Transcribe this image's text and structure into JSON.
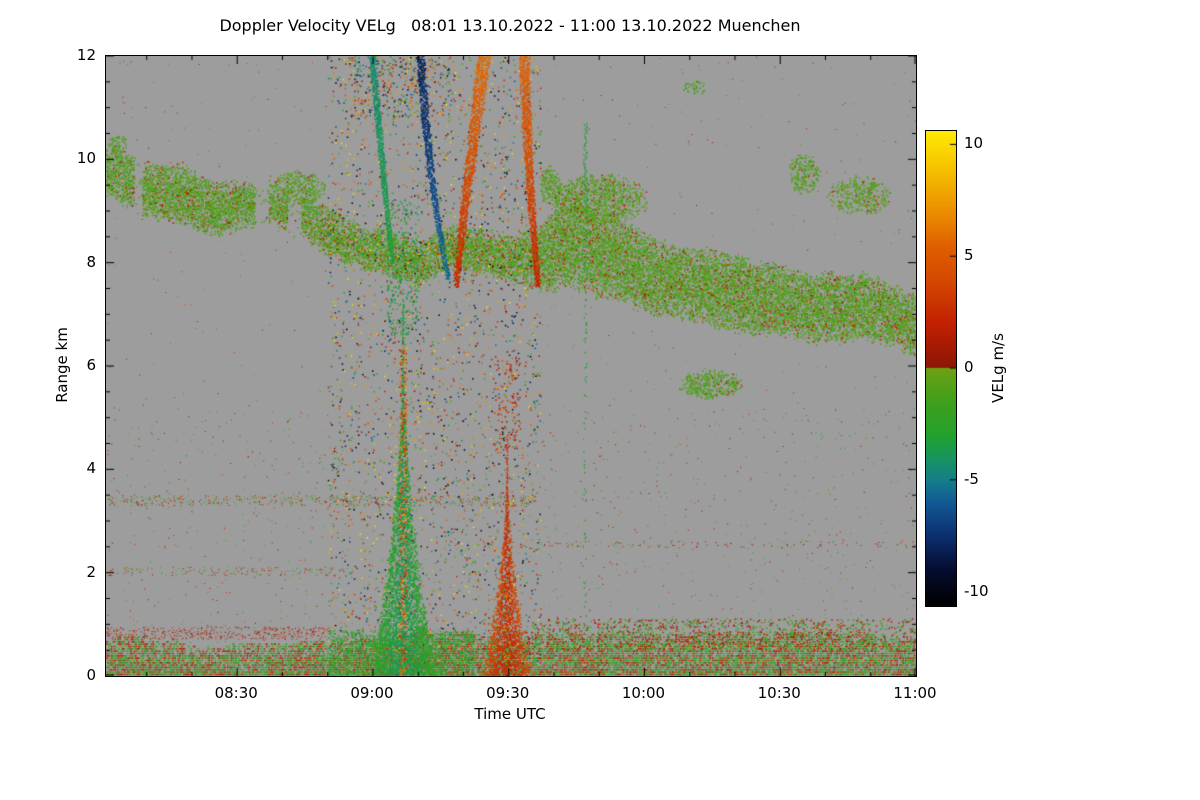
{
  "chart_data": {
    "type": "heatmap",
    "title": "Doppler Velocity VELg   08:01 13.10.2022 - 11:00 13.10.2022 Muenchen",
    "xlabel": "Time UTC",
    "ylabel": "Range km",
    "x_range": [
      1,
      180
    ],
    "x_minor": 10,
    "x_ticks": [
      {
        "t": 30,
        "label": "08:30"
      },
      {
        "t": 60,
        "label": "09:00"
      },
      {
        "t": 90,
        "label": "09:30"
      },
      {
        "t": 120,
        "label": "10:00"
      },
      {
        "t": 150,
        "label": "10:30"
      },
      {
        "t": 180,
        "label": "11:00"
      }
    ],
    "y_range": [
      0,
      12
    ],
    "y_minor": 0.5,
    "y_ticks": [
      0,
      2,
      4,
      6,
      8,
      10,
      12
    ],
    "background": "#9d9d9d",
    "colorbar": {
      "label": "VELg m/s",
      "range": [
        -10.6,
        10.6
      ],
      "ticks": [
        {
          "v": 10,
          "label": "10"
        },
        {
          "v": 5,
          "label": "5"
        },
        {
          "v": 0,
          "label": "0"
        },
        {
          "v": -5,
          "label": "-5"
        },
        {
          "v": -10,
          "label": "-10"
        }
      ],
      "stops": [
        [
          -10.6,
          "#000000"
        ],
        [
          -9.0,
          "#050d30"
        ],
        [
          -7.5,
          "#0b2f6e"
        ],
        [
          -6.0,
          "#125a96"
        ],
        [
          -5.0,
          "#157e8a"
        ],
        [
          -4.0,
          "#17955f"
        ],
        [
          -3.0,
          "#22a12e"
        ],
        [
          -1.5,
          "#3fa01c"
        ],
        [
          -0.3,
          "#63a014"
        ],
        [
          0.0,
          "#6fa012"
        ],
        [
          0.05,
          "#8c1606"
        ],
        [
          2.0,
          "#c22000"
        ],
        [
          4.0,
          "#d54a00"
        ],
        [
          5.5,
          "#e06000"
        ],
        [
          7.0,
          "#eb8e00"
        ],
        [
          9.0,
          "#f6c300"
        ],
        [
          10.6,
          "#ffea00"
        ]
      ]
    },
    "features": [
      {
        "kind": "speckle",
        "t0": 1,
        "t1": 180,
        "km0": 0,
        "km1": 5.2,
        "density": 0.006,
        "vmin": -4,
        "vmax": 4,
        "size": 1
      },
      {
        "kind": "speckle",
        "t0": 1,
        "t1": 180,
        "km0": 5.2,
        "km1": 12,
        "density": 0.0015,
        "vmin": -4,
        "vmax": 4,
        "size": 1
      },
      {
        "kind": "speckle",
        "t0": 1,
        "t1": 96,
        "km0": 3.3,
        "km1": 3.5,
        "density": 0.12,
        "vmin": -2.5,
        "vmax": 3,
        "size": 1
      },
      {
        "kind": "speckle",
        "t0": 1,
        "t1": 55,
        "km0": 1.95,
        "km1": 2.12,
        "density": 0.08,
        "vmin": -2.5,
        "vmax": 3,
        "size": 1
      },
      {
        "kind": "speckle",
        "t0": 96,
        "t1": 180,
        "km0": 2.5,
        "km1": 2.62,
        "density": 0.05,
        "vmin": -2,
        "vmax": 2.5,
        "size": 1
      },
      {
        "kind": "band",
        "points": [
          [
            1,
            9.8,
            0.5
          ],
          [
            10,
            9.5,
            0.55
          ],
          [
            18,
            9.3,
            0.6
          ],
          [
            26,
            9.05,
            0.55
          ],
          [
            33,
            8.9,
            0.45
          ],
          [
            38,
            8.85,
            0.3
          ],
          [
            44,
            8.75,
            0.45
          ],
          [
            50,
            8.6,
            0.5
          ],
          [
            56,
            8.45,
            0.42
          ],
          [
            62,
            8.3,
            0.45
          ],
          [
            68,
            8.18,
            0.45
          ],
          [
            74,
            8.1,
            0.42
          ],
          [
            80,
            8.02,
            0.48
          ],
          [
            86,
            7.95,
            0.45
          ],
          [
            92,
            7.9,
            0.5
          ],
          [
            97,
            7.95,
            0.65
          ],
          [
            101,
            8.3,
            0.95
          ],
          [
            106,
            8.25,
            0.9
          ],
          [
            112,
            8.1,
            0.82
          ],
          [
            118,
            7.98,
            0.8
          ],
          [
            124,
            7.88,
            0.75
          ],
          [
            130,
            7.78,
            0.72
          ],
          [
            136,
            7.7,
            0.78
          ],
          [
            142,
            7.58,
            0.78
          ],
          [
            148,
            7.47,
            0.72
          ],
          [
            154,
            7.38,
            0.7
          ],
          [
            160,
            7.3,
            0.7
          ],
          [
            166,
            7.18,
            0.68
          ],
          [
            172,
            7.1,
            0.64
          ],
          [
            180,
            6.95,
            0.6
          ]
        ],
        "v": -0.9,
        "jitter": 1.6,
        "pos_frac": 0.1,
        "density": 0.8,
        "gaps": [
          [
            7,
            9
          ],
          [
            34,
            37
          ],
          [
            41,
            44
          ]
        ]
      },
      {
        "kind": "patch",
        "t0": 36,
        "t1": 50,
        "km0": 9.1,
        "km1": 9.8,
        "density": 0.5,
        "v": -0.8,
        "jitter": 1.2,
        "pos_frac": 0.05
      },
      {
        "kind": "patch",
        "t0": 96,
        "t1": 102,
        "km0": 9.1,
        "km1": 9.9,
        "density": 0.5,
        "v": -0.9,
        "jitter": 1.2,
        "pos_frac": 0.05
      },
      {
        "kind": "patch",
        "t0": 99,
        "t1": 121,
        "km0": 8.7,
        "km1": 9.75,
        "density": 0.55,
        "v": -0.8,
        "jitter": 1.4,
        "pos_frac": 0.08
      },
      {
        "kind": "patch",
        "t0": 127,
        "t1": 142,
        "km0": 5.35,
        "km1": 5.95,
        "density": 0.55,
        "v": -1.0,
        "jitter": 1.0,
        "pos_frac": 0.04
      },
      {
        "kind": "patch",
        "t0": 151,
        "t1": 159,
        "km0": 9.3,
        "km1": 10.15,
        "density": 0.5,
        "v": -0.9,
        "jitter": 1.2,
        "pos_frac": 0.05
      },
      {
        "kind": "patch",
        "t0": 160,
        "t1": 175,
        "km0": 8.9,
        "km1": 9.7,
        "density": 0.45,
        "v": -0.8,
        "jitter": 1.3,
        "pos_frac": 0.07
      },
      {
        "kind": "patch",
        "t0": 128,
        "t1": 134,
        "km0": 11.25,
        "km1": 11.55,
        "density": 0.45,
        "v": -1.2,
        "jitter": 0.8,
        "pos_frac": 0
      },
      {
        "kind": "patch",
        "t0": 1,
        "t1": 6,
        "km0": 10.1,
        "km1": 10.5,
        "density": 0.4,
        "v": -1.0,
        "jitter": 1.0,
        "pos_frac": 0.05
      },
      {
        "kind": "speckle",
        "t0": 50,
        "t1": 97,
        "km0": 0,
        "km1": 12,
        "density": 0.05,
        "vmin": -10.6,
        "vmax": 10.6,
        "size": 1.5
      },
      {
        "kind": "speckle",
        "t0": 55,
        "t1": 77,
        "km0": 10.8,
        "km1": 12,
        "density": 0.12,
        "vmin": -9,
        "vmax": 9,
        "size": 1.5
      },
      {
        "kind": "streak",
        "p0": [
          59.5,
          12.3
        ],
        "p1": [
          61.5,
          10.1
        ],
        "p2": [
          64.2,
          8.0
        ],
        "w0": 1.8,
        "w1": 1.0,
        "v0": -4.6,
        "v1": -3.2,
        "jitter": 1.0
      },
      {
        "kind": "streak",
        "p0": [
          70.2,
          12.3
        ],
        "p1": [
          71.8,
          9.6
        ],
        "p2": [
          76.6,
          7.7
        ],
        "w0": 2.2,
        "w1": 1.1,
        "v0": -8.2,
        "v1": -5.4,
        "jitter": 1.4
      },
      {
        "kind": "streak",
        "p0": [
          85.0,
          12.3
        ],
        "p1": [
          80.6,
          9.6
        ],
        "p2": [
          78.2,
          7.55
        ],
        "w0": 3.4,
        "w1": 1.3,
        "v0": 6.2,
        "v1": 2.2,
        "jitter": 1.2
      },
      {
        "kind": "streak",
        "p0": [
          93.2,
          12.3
        ],
        "p1": [
          94.2,
          9.4
        ],
        "p2": [
          96.4,
          7.55
        ],
        "w0": 2.7,
        "w1": 1.2,
        "v0": 5.6,
        "v1": 2.2,
        "jitter": 1.2
      },
      {
        "kind": "speckle",
        "t0": 63,
        "t1": 70,
        "km0": 6.6,
        "km1": 9.2,
        "density": 0.14,
        "vmin": -4.5,
        "vmax": -1.5,
        "size": 1.5
      },
      {
        "kind": "speckle",
        "t0": 86.5,
        "t1": 92.5,
        "km0": 4.4,
        "km1": 6.2,
        "density": 0.1,
        "vmin": 0.5,
        "vmax": 4.5,
        "size": 1.5
      },
      {
        "kind": "surface",
        "t0": 1,
        "t1": 180,
        "base_top": 0.55,
        "bump": 0.4,
        "dg": 0.5,
        "dr": 0.3,
        "vg": [
          -3.2,
          -0.6
        ],
        "vr": [
          0.4,
          3.4
        ]
      },
      {
        "kind": "speckle",
        "t0": 95,
        "t1": 180,
        "km0": 0.5,
        "km1": 1.12,
        "density": 0.22,
        "vmin": -3,
        "vmax": 3,
        "size": 1.5
      },
      {
        "kind": "speckle",
        "t0": 1,
        "t1": 50,
        "km0": 0.72,
        "km1": 0.96,
        "density": 0.15,
        "vmin": 0.3,
        "vmax": 3,
        "size": 1
      },
      {
        "kind": "speckle",
        "t0": 50,
        "t1": 82,
        "km0": 0,
        "km1": 0.9,
        "density": 0.4,
        "vmin": -3.4,
        "vmax": -1,
        "size": 1.5
      },
      {
        "kind": "plume",
        "tc": 66.5,
        "base_hw": 8.2,
        "top": 7.3,
        "exp": 2.3,
        "v_core": -3.8,
        "v_edge": -2.0,
        "axis": {
          "hw": 0.9,
          "top": 6.4,
          "density": 0.3,
          "vmin": 1,
          "vmax": 9
        }
      },
      {
        "kind": "plume",
        "tc": 89.5,
        "base_hw": 6.0,
        "top": 4.7,
        "exp": 2.2,
        "v_core": 2.2,
        "v_edge": 4.6,
        "axis": {
          "hw": 0.8,
          "top": 1.9,
          "density": 0.3,
          "vmin": -4,
          "vmax": 9
        }
      },
      {
        "kind": "vline",
        "t": 106.8,
        "w": 0.8,
        "v": -3.0,
        "jitter": 0.8,
        "segments": [
          {
            "km0": 9.0,
            "km1": 10.75,
            "density": 0.85
          },
          {
            "km0": 5.3,
            "km1": 9.0,
            "density": 0.25
          },
          {
            "km0": 0.4,
            "km1": 5.3,
            "density": 0.1
          }
        ]
      }
    ]
  }
}
